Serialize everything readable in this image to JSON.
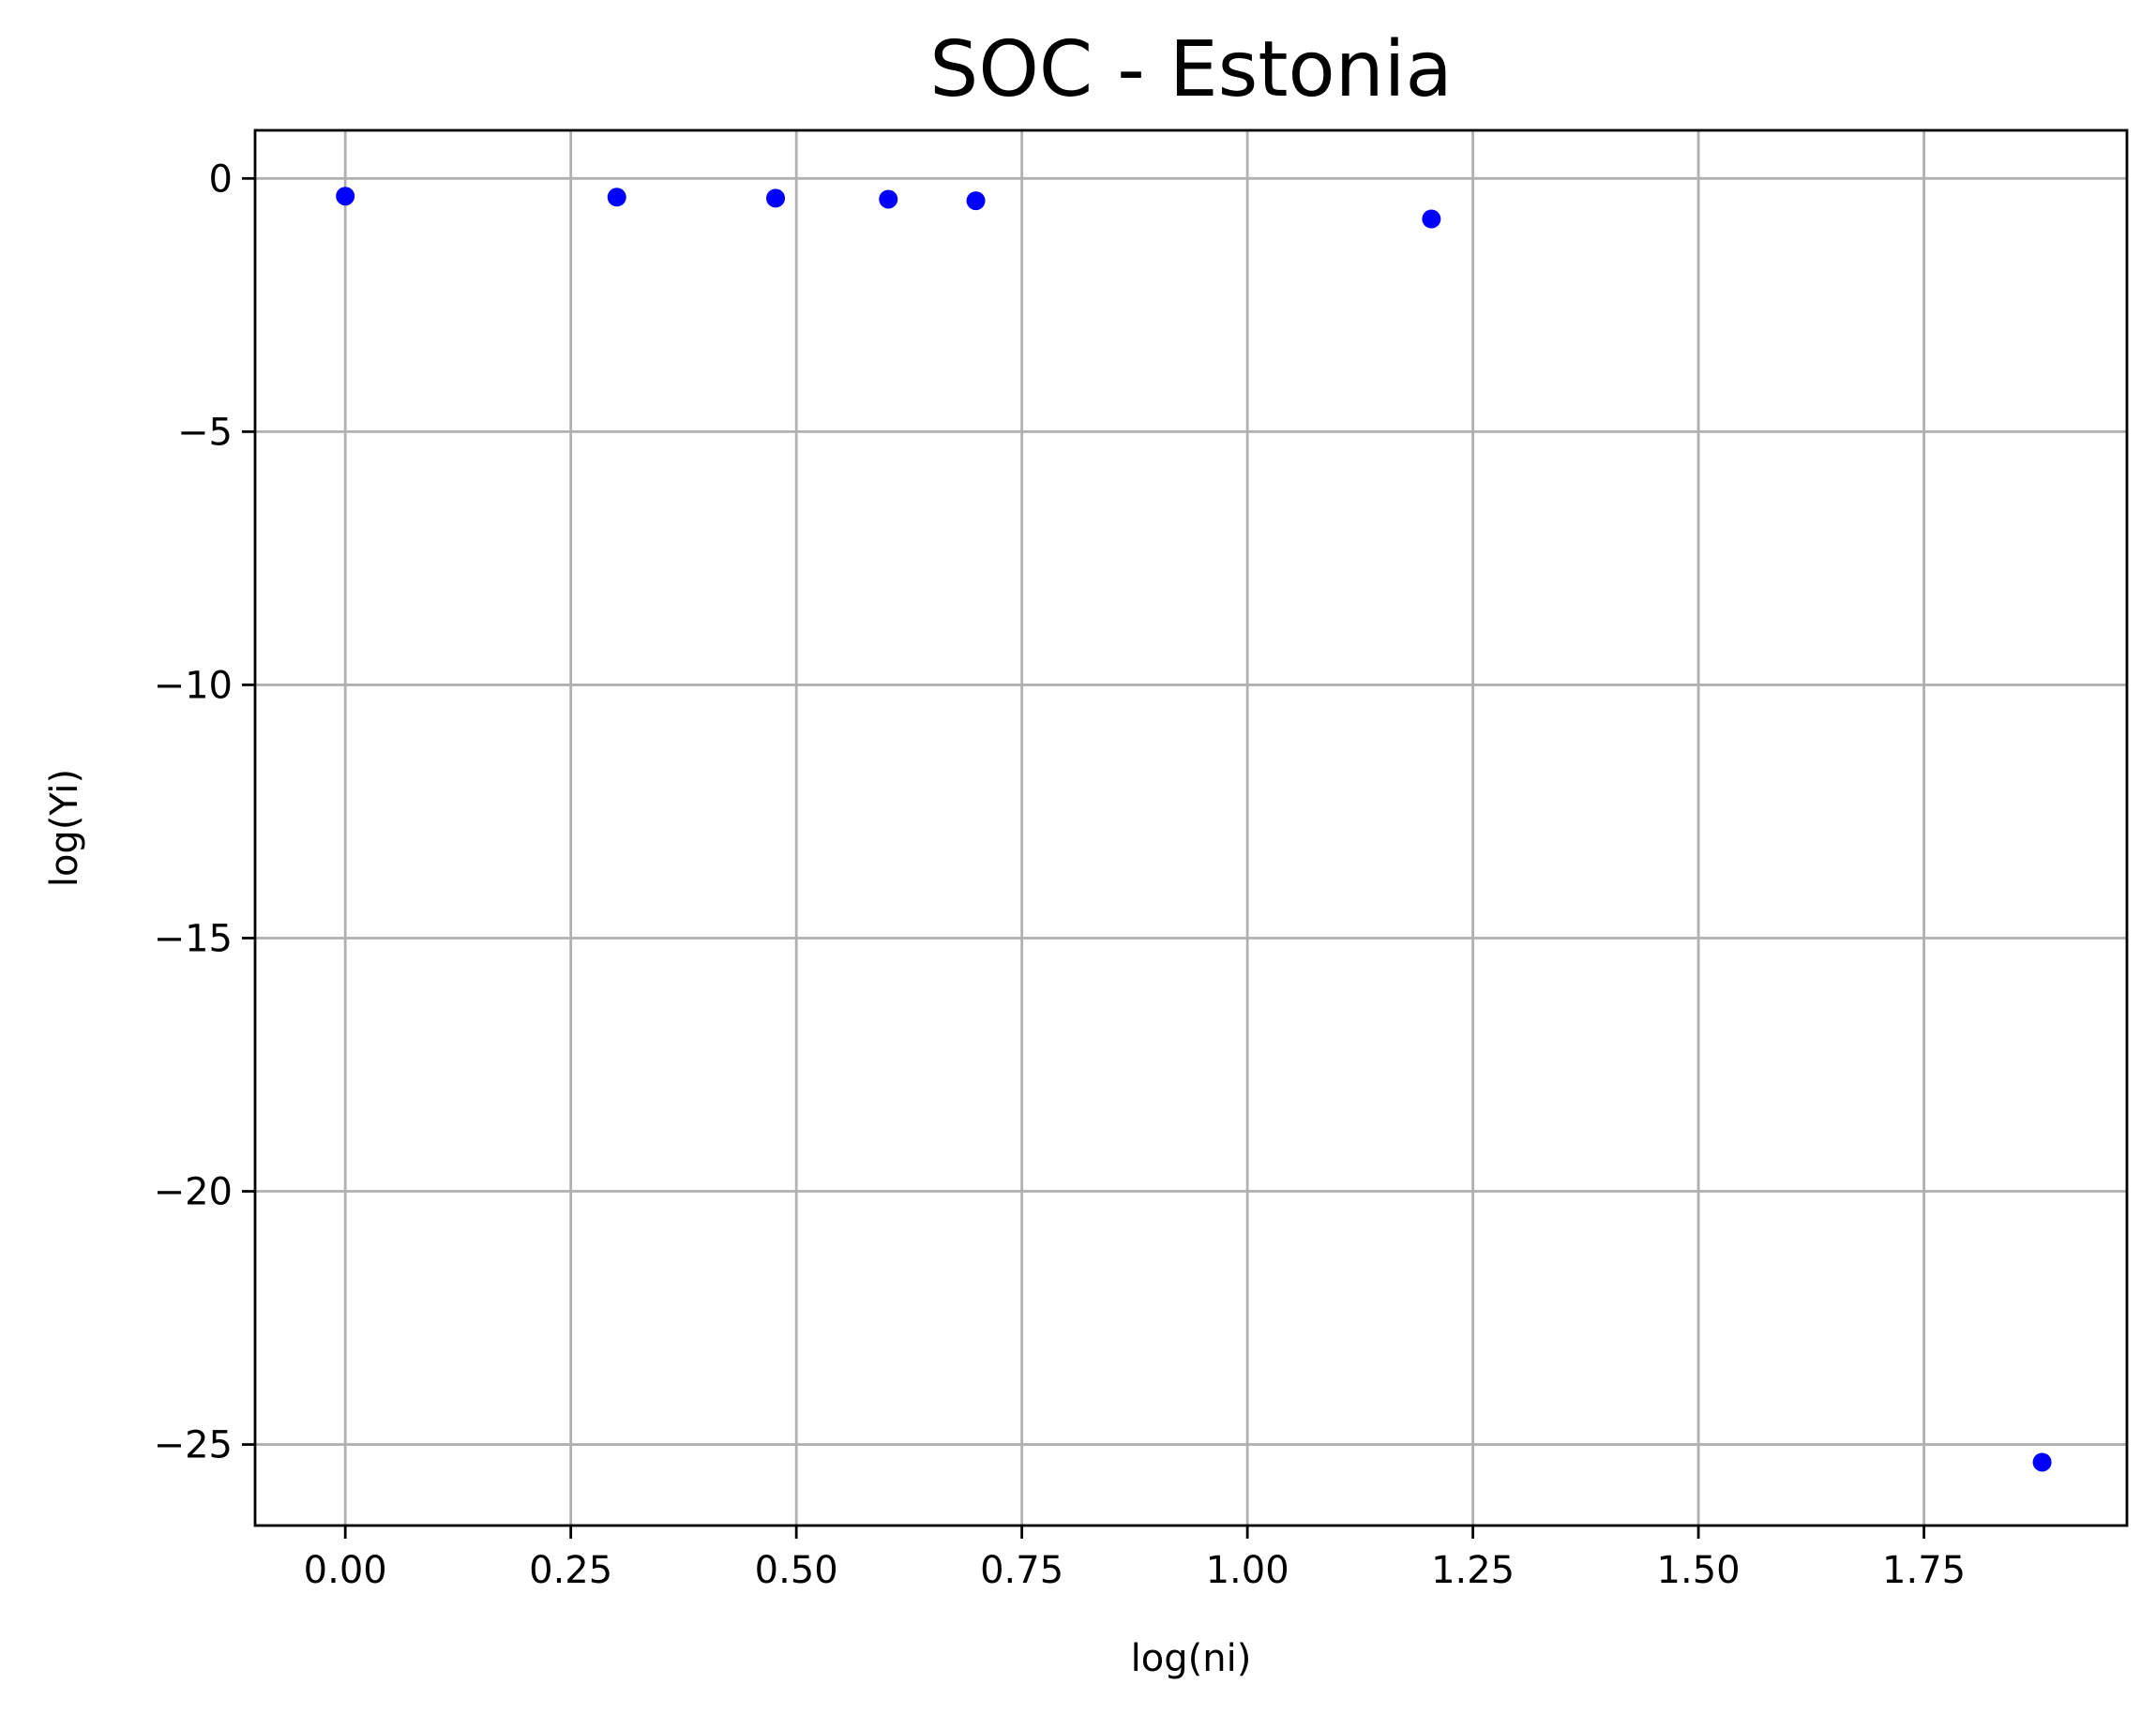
{
  "chart_data": {
    "type": "scatter",
    "title": "SOC - Estonia",
    "xlabel": "log(ni)",
    "ylabel": "log(Yi)",
    "xlim": [
      -0.1,
      1.975
    ],
    "ylim": [
      -26.6,
      0.95
    ],
    "xticks": [
      0.0,
      0.25,
      0.5,
      0.75,
      1.0,
      1.25,
      1.5,
      1.75
    ],
    "xtick_labels": [
      "0.00",
      "0.25",
      "0.50",
      "0.75",
      "1.00",
      "1.25",
      "1.50",
      "1.75"
    ],
    "yticks": [
      0,
      -5,
      -10,
      -15,
      -20,
      -25
    ],
    "ytick_labels": [
      "0",
      "−5",
      "−10",
      "−15",
      "−20",
      "−25"
    ],
    "grid": true,
    "marker_color": "#0000ff",
    "series": [
      {
        "points": [
          {
            "x": 0.0,
            "y": -0.35
          },
          {
            "x": 0.301,
            "y": -0.37
          },
          {
            "x": 0.477,
            "y": -0.39
          },
          {
            "x": 0.602,
            "y": -0.41
          },
          {
            "x": 0.699,
            "y": -0.44
          },
          {
            "x": 1.204,
            "y": -0.8
          },
          {
            "x": 1.881,
            "y": -25.35
          }
        ]
      }
    ]
  }
}
